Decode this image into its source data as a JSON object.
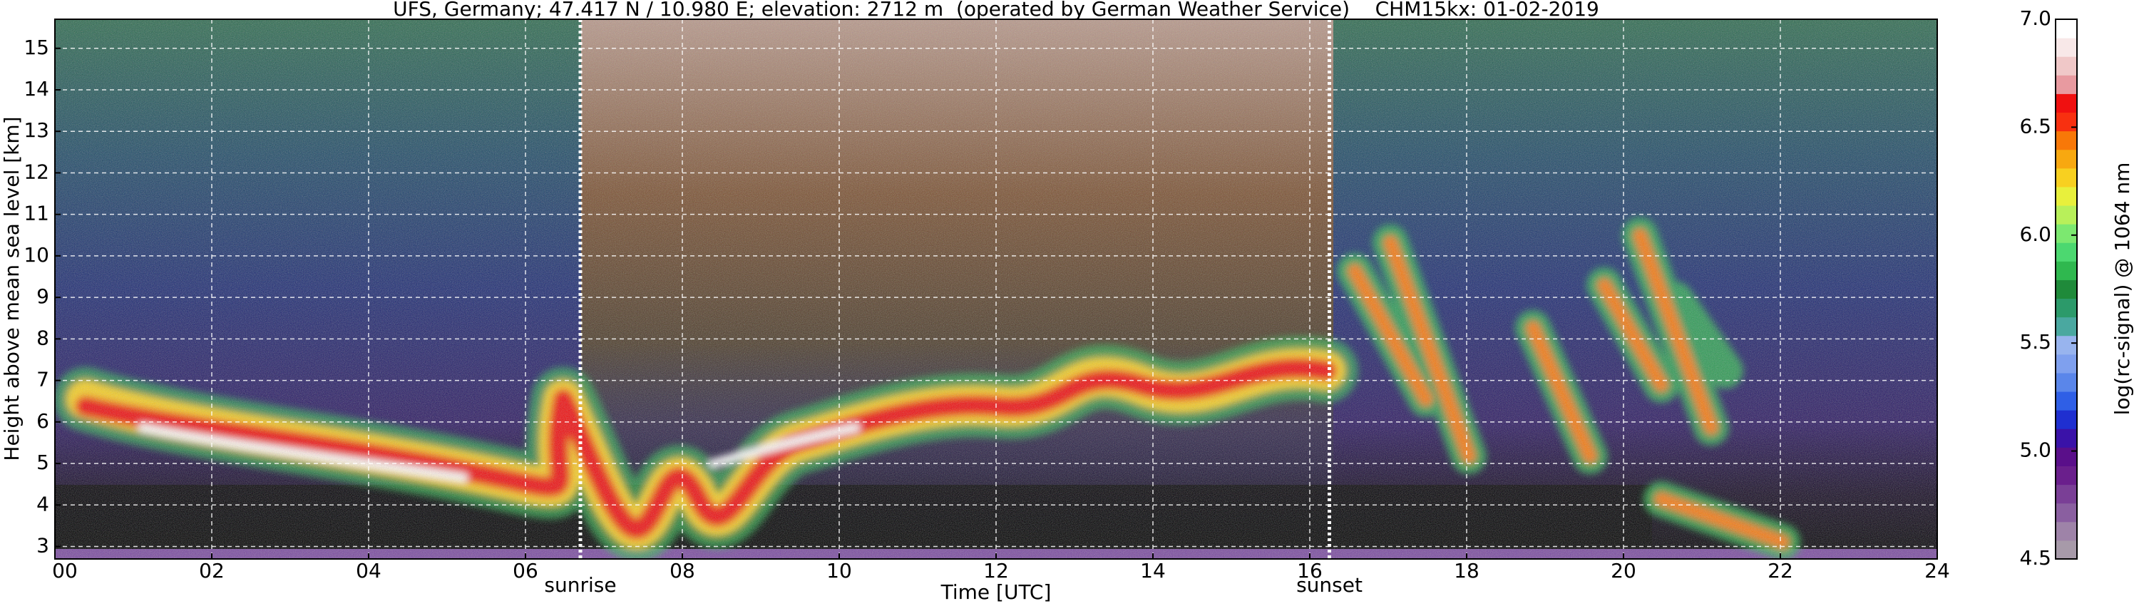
{
  "chart_data": {
    "type": "heatmap",
    "title": "UFS, Germany; 47.417 N / 10.980 E; elevation: 2712 m  (operated by German Weather Service)    CHM15kx: 01-02-2019",
    "x_label": "Time [UTC]",
    "y_label": "Height above mean sea level [km]",
    "xlim": [
      0,
      24
    ],
    "xticks": [
      {
        "value": 0,
        "label": "00"
      },
      {
        "value": 2,
        "label": "02"
      },
      {
        "value": 4,
        "label": "04"
      },
      {
        "value": 6,
        "label": "06"
      },
      {
        "value": 8,
        "label": "08"
      },
      10,
      12,
      14,
      16,
      18,
      20,
      22,
      24
    ],
    "ylim": [
      2.7,
      15.7
    ],
    "yticks": [
      3,
      4,
      5,
      6,
      7,
      8,
      9,
      10,
      11,
      12,
      13,
      14,
      15
    ],
    "grid": true,
    "annotations": [
      {
        "text": "sunrise",
        "x": 6.7
      },
      {
        "text": "sunset",
        "x": 16.25
      }
    ],
    "colorbar": {
      "label": "log(rc-signal) @ 1064 nm",
      "lim": [
        4.5,
        7.0
      ],
      "ticks": [
        {
          "value": 4.5,
          "label": "4.5"
        },
        {
          "value": 5.0,
          "label": "5.0"
        },
        {
          "value": 5.5,
          "label": "5.5"
        },
        {
          "value": 6.0,
          "label": "6.0"
        },
        {
          "value": 6.5,
          "label": "6.5"
        },
        {
          "value": 7.0,
          "label": "7.0"
        }
      ],
      "colors": [
        "#a79aa9",
        "#9e83a8",
        "#8a5fa0",
        "#7a3f96",
        "#6a1f8c",
        "#5a0f8a",
        "#3a12a8",
        "#1f2fd0",
        "#2f5fe6",
        "#5a86ea",
        "#7fa0ee",
        "#98b4ee",
        "#4aa8a0",
        "#2c9a6a",
        "#1f8a3a",
        "#2fb84f",
        "#4cd870",
        "#7ce870",
        "#b8f05a",
        "#e8f03c",
        "#f8d020",
        "#f8a810",
        "#f87808",
        "#f83010",
        "#f01010",
        "#e89aa0",
        "#f0c8c8",
        "#f8e8e8",
        "#ffffff"
      ]
    }
  }
}
